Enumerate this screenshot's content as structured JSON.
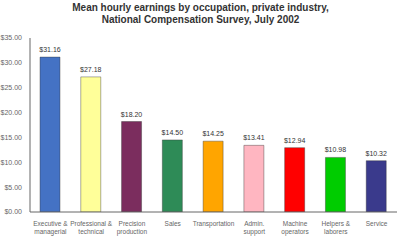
{
  "chart_data": {
    "type": "bar",
    "title": "Mean hourly earnings by occupation, private industry,\nNational Compensation Survey, July 2002",
    "categories": [
      "Executive &\nmanagerial",
      "Professional &\ntechnical",
      "Precision\nproduction",
      "Sales",
      "Transportation",
      "Admin.\nsupport",
      "Machine\noperators",
      "Helpers &\nlaborers",
      "Service"
    ],
    "values": [
      31.16,
      27.18,
      18.2,
      14.5,
      14.25,
      13.41,
      12.94,
      10.98,
      10.32
    ],
    "value_labels": [
      "$31.16",
      "$27.18",
      "$18.20",
      "$14.50",
      "$14.25",
      "$13.41",
      "$12.94",
      "$10.98",
      "$10.32"
    ],
    "data_labels": true,
    "colors": [
      "#4472C4",
      "#FFFF99",
      "#7B2D5E",
      "#2E8B57",
      "#FFA500",
      "#FFB6C1",
      "#FF0000",
      "#00CC00",
      "#3A3A8C"
    ],
    "ylim": [
      0,
      35
    ],
    "yticks": [
      {
        "value": 0,
        "label": "$0.00"
      },
      {
        "value": 5,
        "label": "$5.00"
      },
      {
        "value": 10,
        "label": "$10.00"
      },
      {
        "value": 15,
        "label": "$15.00"
      },
      {
        "value": 20,
        "label": "$20.00"
      },
      {
        "value": 25,
        "label": "$25.00"
      },
      {
        "value": 30,
        "label": "$30.00"
      },
      {
        "value": 35,
        "label": "$35.00"
      }
    ],
    "grid": false
  }
}
